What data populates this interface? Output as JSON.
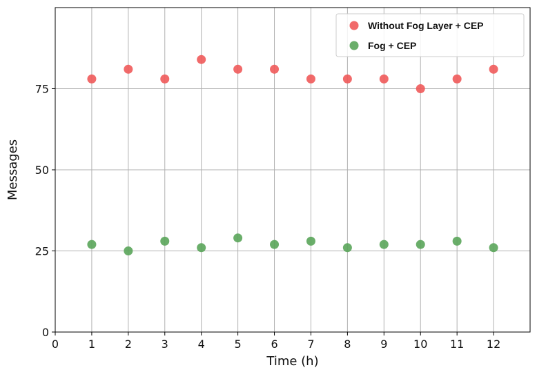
{
  "chart_data": {
    "type": "scatter",
    "xlabel": "Time (h)",
    "ylabel": "Messages",
    "xlim": [
      0,
      13
    ],
    "ylim": [
      0,
      100
    ],
    "xticks": [
      0,
      1,
      2,
      3,
      4,
      5,
      6,
      7,
      8,
      9,
      10,
      11,
      12
    ],
    "yticks": [
      0,
      25,
      50,
      75
    ],
    "grid": true,
    "legend_position": "top-right",
    "series": [
      {
        "name": "Without Fog Layer + CEP",
        "color": "#f05a5a",
        "x": [
          1,
          2,
          3,
          4,
          5,
          6,
          7,
          8,
          9,
          10,
          11,
          12
        ],
        "y": [
          78,
          81,
          78,
          84,
          81,
          81,
          78,
          78,
          78,
          75,
          78,
          81
        ]
      },
      {
        "name": "Fog + CEP",
        "color": "#5aa55a",
        "x": [
          1,
          2,
          3,
          4,
          5,
          6,
          7,
          8,
          9,
          10,
          11,
          12
        ],
        "y": [
          27,
          25,
          28,
          26,
          29,
          27,
          28,
          26,
          27,
          27,
          28,
          26
        ]
      }
    ]
  }
}
